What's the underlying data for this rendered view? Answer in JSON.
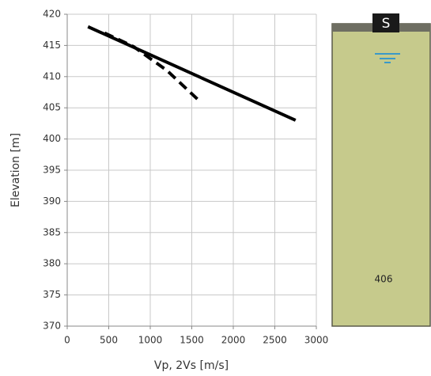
{
  "chart_data": {
    "type": "line",
    "xlabel": "Vp, 2Vs [m/s]",
    "ylabel": "Elevation [m]",
    "xlim": [
      0,
      3000
    ],
    "xticks": [
      0,
      500,
      1000,
      1500,
      2000,
      2500,
      3000
    ],
    "ylim": [
      370,
      420
    ],
    "yticks": [
      370,
      375,
      380,
      385,
      390,
      395,
      400,
      405,
      410,
      415,
      420
    ],
    "grid": true,
    "series": [
      {
        "color": "#000000",
        "style": "solid",
        "x": [
          250,
          2750
        ],
        "values": [
          418,
          403
        ]
      },
      {
        "color": "#000000",
        "style": "dashed",
        "x": [
          450,
          800,
          1200,
          1600
        ],
        "values": [
          417,
          414.8,
          411,
          406
        ]
      }
    ]
  },
  "diagram": {
    "marker": "S",
    "label": "406"
  }
}
